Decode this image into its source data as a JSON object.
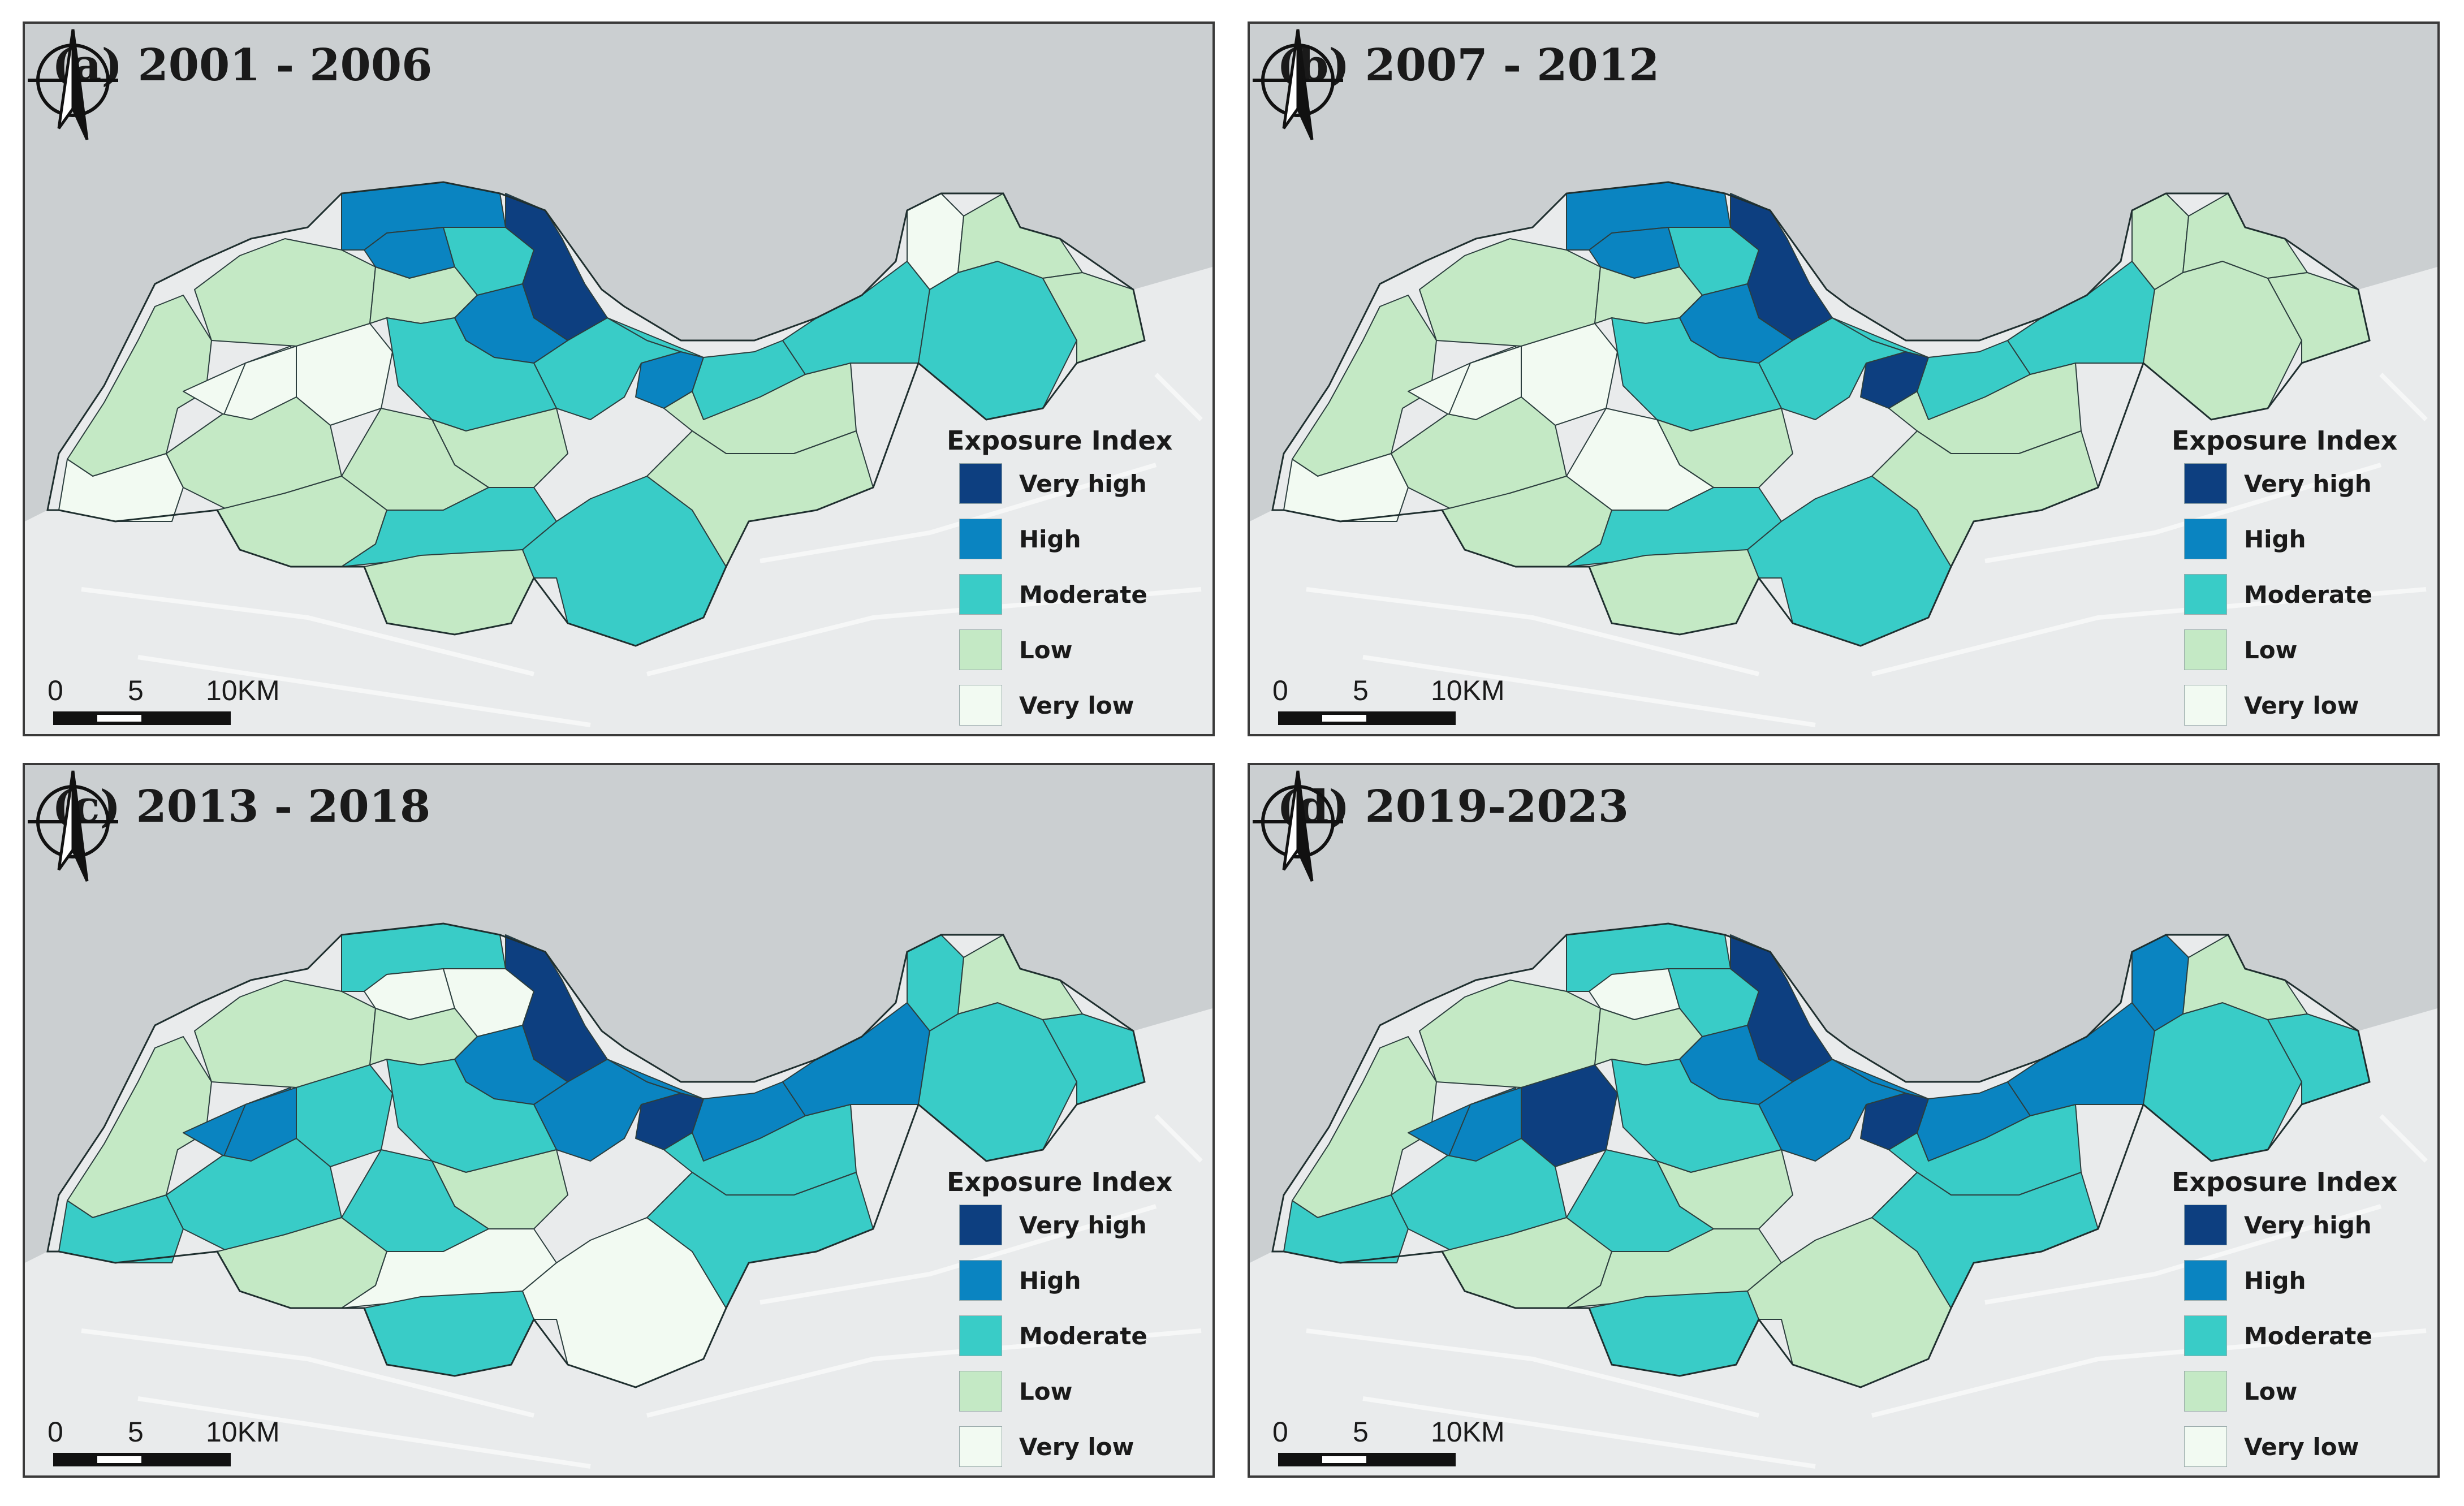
{
  "legend": {
    "title": "Exposure Index",
    "classes": [
      {
        "label": "Very high",
        "color": "#0d3f80"
      },
      {
        "label": "High",
        "color": "#0a84c1"
      },
      {
        "label": "Moderate",
        "color": "#39ccc7"
      },
      {
        "label": "Low",
        "color": "#c4e9c5"
      },
      {
        "label": "Very low",
        "color": "#f2faf2"
      }
    ]
  },
  "scale_bar": {
    "label_0": "0",
    "label_5": "5",
    "label_10": "10KM"
  },
  "colors": {
    "sea": "#cbcfd1",
    "land_bg": "#e9ebec",
    "boundary": "#2c3e3e"
  },
  "panels": [
    {
      "title": "(a) 2001 - 2006",
      "zones": {
        "W1": "Low",
        "W2": "Low",
        "W3": "Very low",
        "W4": "Very low",
        "W5": "Very low",
        "W6": "Very low",
        "W7": "Low",
        "N1": "High",
        "N2": "High",
        "N3": "Moderate",
        "N4": "Low",
        "C1": "Very high",
        "C2": "High",
        "C3": "High",
        "C4": "Moderate",
        "C5": "Moderate",
        "C6": "Low",
        "C7": "Low",
        "S1": "Low",
        "S2": "Moderate",
        "S3": "Low",
        "S4": "Moderate",
        "E1": "Moderate",
        "E2": "Low",
        "E3": "Moderate",
        "E4": "Very low",
        "E5": "Low",
        "E6": "Moderate",
        "E7": "Low",
        "E8": "Low"
      }
    },
    {
      "title": "(b) 2007 - 2012",
      "zones": {
        "W1": "Low",
        "W2": "Low",
        "W3": "Very low",
        "W4": "Very low",
        "W5": "Very low",
        "W6": "Very low",
        "W7": "Low",
        "N1": "High",
        "N2": "High",
        "N3": "Moderate",
        "N4": "Low",
        "C1": "Very high",
        "C2": "High",
        "C3": "Very high",
        "C4": "Moderate",
        "C5": "Moderate",
        "C6": "Low",
        "C7": "Very low",
        "S1": "Low",
        "S2": "Moderate",
        "S3": "Low",
        "S4": "Moderate",
        "E1": "Moderate",
        "E2": "Low",
        "E3": "Moderate",
        "E4": "Low",
        "E5": "Low",
        "E6": "Low",
        "E7": "Low",
        "E8": "Low"
      }
    },
    {
      "title": "(c) 2013 - 2018",
      "zones": {
        "W1": "Low",
        "W2": "Low",
        "W3": "Moderate",
        "W4": "High",
        "W5": "Moderate",
        "W6": "High",
        "W7": "Moderate",
        "N1": "Moderate",
        "N2": "Very low",
        "N3": "Very low",
        "N4": "Low",
        "C1": "Very high",
        "C2": "High",
        "C3": "Very high",
        "C4": "High",
        "C5": "Moderate",
        "C6": "Low",
        "C7": "Moderate",
        "S1": "Low",
        "S2": "Very low",
        "S3": "Moderate",
        "S4": "Very low",
        "E1": "High",
        "E2": "Moderate",
        "E3": "High",
        "E4": "Moderate",
        "E5": "Moderate",
        "E6": "Moderate",
        "E7": "Low",
        "E8": "Moderate"
      }
    },
    {
      "title": "(d) 2019-2023",
      "zones": {
        "W1": "Low",
        "W2": "Low",
        "W3": "Moderate",
        "W4": "High",
        "W5": "Very high",
        "W6": "High",
        "W7": "Moderate",
        "N1": "Moderate",
        "N2": "Very low",
        "N3": "Moderate",
        "N4": "Low",
        "C1": "Very high",
        "C2": "High",
        "C3": "Very high",
        "C4": "High",
        "C5": "Moderate",
        "C6": "Low",
        "C7": "Moderate",
        "S1": "Low",
        "S2": "Low",
        "S3": "Moderate",
        "S4": "Low",
        "E1": "High",
        "E2": "Moderate",
        "E3": "High",
        "E4": "High",
        "E5": "Moderate",
        "E6": "Moderate",
        "E7": "Low",
        "E8": "Moderate"
      }
    }
  ]
}
